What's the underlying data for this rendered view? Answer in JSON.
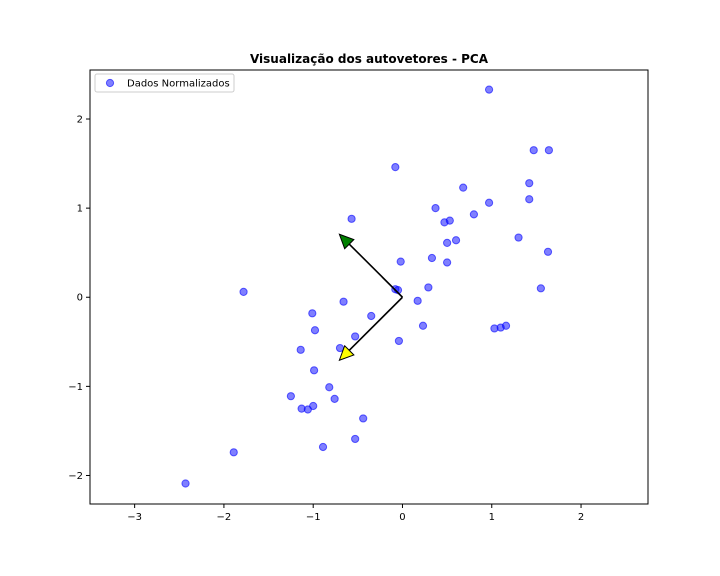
{
  "chart_data": {
    "type": "scatter",
    "title": "Visualização dos autovetores - PCA",
    "xlabel": "",
    "ylabel": "",
    "xlim": [
      -3.5,
      2.75
    ],
    "ylim": [
      -2.32,
      2.55
    ],
    "x_ticks": [
      -3,
      -2,
      -1,
      0,
      1,
      2
    ],
    "y_ticks": [
      -2,
      -1,
      0,
      1,
      2
    ],
    "grid": false,
    "legend_position": "top-left",
    "series": [
      {
        "name": "Dados Normalizados",
        "color": "#0000ff",
        "points": [
          [
            0.97,
            2.33
          ],
          [
            1.47,
            1.65
          ],
          [
            1.64,
            1.65
          ],
          [
            -0.08,
            1.46
          ],
          [
            1.42,
            1.28
          ],
          [
            0.68,
            1.23
          ],
          [
            1.42,
            1.1
          ],
          [
            0.97,
            1.06
          ],
          [
            0.37,
            1.0
          ],
          [
            0.8,
            0.93
          ],
          [
            -0.57,
            0.88
          ],
          [
            0.53,
            0.86
          ],
          [
            0.47,
            0.84
          ],
          [
            1.3,
            0.67
          ],
          [
            0.6,
            0.64
          ],
          [
            0.5,
            0.61
          ],
          [
            1.63,
            0.51
          ],
          [
            0.33,
            0.44
          ],
          [
            -0.02,
            0.4
          ],
          [
            0.5,
            0.39
          ],
          [
            1.55,
            0.1
          ],
          [
            0.29,
            0.11
          ],
          [
            -0.08,
            0.09
          ],
          [
            -0.05,
            0.08
          ],
          [
            -1.78,
            0.06
          ],
          [
            -0.66,
            -0.05
          ],
          [
            0.17,
            -0.04
          ],
          [
            -0.35,
            -0.21
          ],
          [
            -1.01,
            -0.18
          ],
          [
            0.23,
            -0.32
          ],
          [
            1.03,
            -0.35
          ],
          [
            1.1,
            -0.34
          ],
          [
            1.16,
            -0.32
          ],
          [
            -0.98,
            -0.37
          ],
          [
            -0.53,
            -0.44
          ],
          [
            -0.04,
            -0.49
          ],
          [
            -1.14,
            -0.59
          ],
          [
            -0.7,
            -0.57
          ],
          [
            -0.99,
            -0.82
          ],
          [
            -0.82,
            -1.01
          ],
          [
            -1.25,
            -1.11
          ],
          [
            -0.76,
            -1.14
          ],
          [
            -1.13,
            -1.25
          ],
          [
            -1.06,
            -1.26
          ],
          [
            -1.0,
            -1.22
          ],
          [
            -0.44,
            -1.36
          ],
          [
            -0.53,
            -1.59
          ],
          [
            -0.89,
            -1.68
          ],
          [
            -1.89,
            -1.74
          ],
          [
            -2.43,
            -2.09
          ]
        ]
      }
    ],
    "eigenvectors": [
      {
        "origin": [
          0,
          0
        ],
        "vector": [
          -0.707,
          0.707
        ],
        "head_color": "#008000"
      },
      {
        "origin": [
          0,
          0
        ],
        "vector": [
          -0.707,
          -0.707
        ],
        "head_color": "#ffff00"
      }
    ]
  }
}
